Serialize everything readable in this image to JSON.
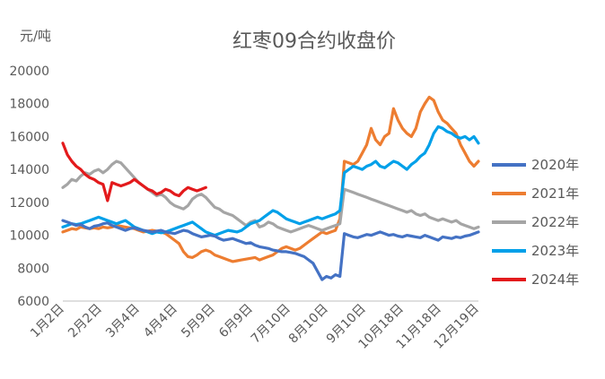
{
  "chart_data": {
    "type": "line",
    "title": "红枣09合约收盘价",
    "ylabel": "元/吨",
    "xlabel": "",
    "ylim": [
      6000,
      20000
    ],
    "yticks": [
      "20000",
      "18000",
      "16000",
      "14000",
      "12000",
      "10000",
      "8000",
      "6000"
    ],
    "xticks": [
      "1月2日",
      "2月2日",
      "3月4日",
      "4月4日",
      "5月9日",
      "6月9日",
      "7月10日",
      "8月10日",
      "9月10日",
      "10月18日",
      "11月18日",
      "12月19日"
    ],
    "grid": false,
    "legend_position": "right",
    "series": [
      {
        "name": "2020年",
        "color": "#4472C4",
        "values": [
          10900,
          10800,
          10700,
          10600,
          10650,
          10500,
          10400,
          10550,
          10600,
          10700,
          10750,
          10600,
          10500,
          10400,
          10300,
          10400,
          10450,
          10350,
          10300,
          10250,
          10200,
          10250,
          10300,
          10200,
          10150,
          10100,
          10200,
          10300,
          10250,
          10100,
          10000,
          9900,
          9950,
          10000,
          9950,
          9800,
          9700,
          9750,
          9800,
          9700,
          9600,
          9500,
          9550,
          9400,
          9300,
          9250,
          9200,
          9100,
          9050,
          9000,
          9000,
          8950,
          8900,
          8800,
          8700,
          8500,
          8300,
          7800,
          7300,
          7500,
          7400,
          7600,
          7500,
          10100,
          10000,
          9900,
          9850,
          9950,
          10050,
          10000,
          10100,
          10200,
          10100,
          10000,
          10050,
          9950,
          9900,
          10000,
          9950,
          9900,
          9850,
          10000,
          9900,
          9800,
          9700,
          9900,
          9850,
          9800,
          9900,
          9850,
          9950,
          10000,
          10100,
          10200
        ]
      },
      {
        "name": "2021年",
        "color": "#ED7D31",
        "values": [
          10200,
          10300,
          10400,
          10350,
          10500,
          10450,
          10400,
          10450,
          10400,
          10500,
          10450,
          10500,
          10600,
          10550,
          10500,
          10450,
          10400,
          10300,
          10200,
          10250,
          10300,
          10250,
          10200,
          10100,
          9900,
          9700,
          9500,
          9000,
          8700,
          8650,
          8800,
          9000,
          9100,
          9000,
          8800,
          8700,
          8600,
          8500,
          8400,
          8450,
          8500,
          8550,
          8600,
          8650,
          8500,
          8600,
          8700,
          8800,
          9000,
          9200,
          9300,
          9200,
          9100,
          9200,
          9400,
          9600,
          9800,
          10000,
          10200,
          10100,
          10200,
          10300,
          11000,
          14500,
          14400,
          14300,
          14500,
          15000,
          15500,
          16500,
          15800,
          15500,
          16000,
          16200,
          17700,
          17000,
          16500,
          16200,
          16000,
          16500,
          17500,
          18000,
          18400,
          18200,
          17500,
          17000,
          16800,
          16500,
          16200,
          15500,
          15000,
          14500,
          14200,
          14500
        ]
      },
      {
        "name": "2022年",
        "color": "#A5A5A5",
        "values": [
          12900,
          13100,
          13400,
          13300,
          13600,
          13800,
          13700,
          13900,
          14000,
          13800,
          14000,
          14300,
          14500,
          14400,
          14100,
          13800,
          13500,
          13200,
          13000,
          12800,
          12600,
          12400,
          12500,
          12300,
          12000,
          11800,
          11700,
          11600,
          11800,
          12200,
          12400,
          12500,
          12300,
          12000,
          11700,
          11600,
          11400,
          11300,
          11200,
          11000,
          10800,
          10600,
          10800,
          10900,
          10500,
          10600,
          10800,
          10700,
          10500,
          10400,
          10300,
          10200,
          10300,
          10400,
          10500,
          10600,
          10500,
          10400,
          10300,
          10400,
          10500,
          10600,
          10700,
          12800,
          12700,
          12600,
          12500,
          12400,
          12300,
          12200,
          12100,
          12000,
          11900,
          11800,
          11700,
          11600,
          11500,
          11400,
          11500,
          11300,
          11200,
          11300,
          11100,
          11000,
          10900,
          11000,
          10900,
          10800,
          10900,
          10700,
          10600,
          10500,
          10400,
          10500
        ]
      },
      {
        "name": "2023年",
        "color": "#00A0E9",
        "values": [
          10500,
          10600,
          10700,
          10650,
          10700,
          10800,
          10900,
          11000,
          11100,
          11000,
          10900,
          10800,
          10700,
          10800,
          10900,
          10700,
          10500,
          10400,
          10300,
          10200,
          10100,
          10200,
          10150,
          10200,
          10300,
          10400,
          10500,
          10600,
          10700,
          10800,
          10600,
          10400,
          10200,
          10100,
          10000,
          10100,
          10200,
          10300,
          10250,
          10200,
          10300,
          10500,
          10700,
          10800,
          10900,
          11100,
          11300,
          11500,
          11400,
          11200,
          11000,
          10900,
          10800,
          10700,
          10800,
          10900,
          11000,
          11100,
          11000,
          11100,
          11200,
          11300,
          11500,
          13800,
          14000,
          14200,
          14100,
          14000,
          14200,
          14300,
          14500,
          14200,
          14100,
          14300,
          14500,
          14400,
          14200,
          14000,
          14300,
          14500,
          14800,
          15000,
          15500,
          16200,
          16600,
          16500,
          16300,
          16200,
          16000,
          15900,
          16000,
          15800,
          16000,
          15600
        ]
      },
      {
        "name": "2024年",
        "color": "#E31A1C",
        "values": [
          15600,
          14900,
          14500,
          14200,
          14000,
          13700,
          13500,
          13400,
          13200,
          13100,
          12100,
          13200,
          13100,
          13000,
          13100,
          13200,
          13400,
          13200,
          13000,
          12800,
          12700,
          12500,
          12600,
          12800,
          12700,
          12500,
          12400,
          12700,
          12900,
          12800,
          12700,
          12800,
          12900
        ]
      }
    ]
  }
}
